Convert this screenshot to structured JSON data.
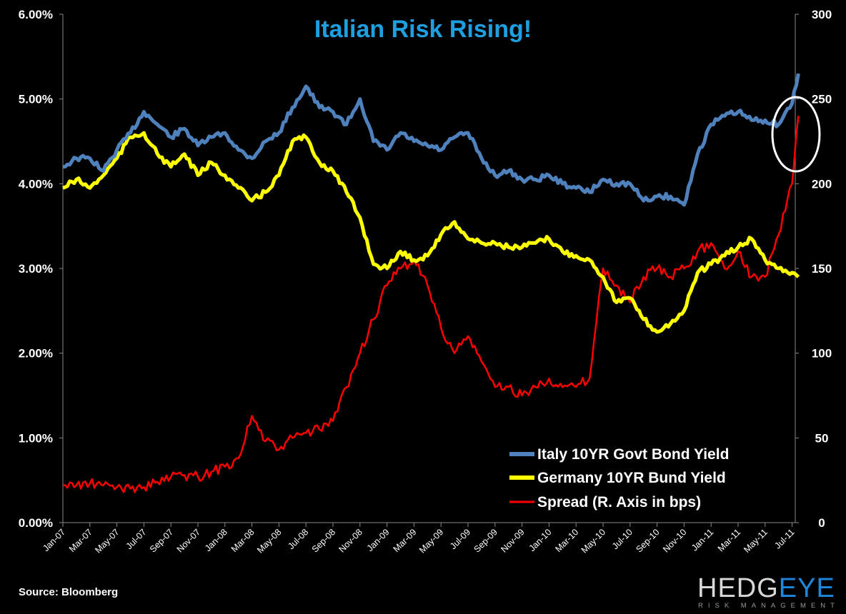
{
  "chart_data": {
    "type": "line",
    "title": "Italian Risk Rising!",
    "title_color": "#1ea0e0",
    "source": "Source: Bloomberg",
    "logo": {
      "main_a": "HEDG",
      "main_b": "EYE",
      "sub": "RISK MANAGEMENT"
    },
    "x_tick_labels": [
      "Jan-07",
      "Mar-07",
      "May-07",
      "Jul-07",
      "Sep-07",
      "Nov-07",
      "Jan-08",
      "Mar-08",
      "May-08",
      "Jul-08",
      "Sep-08",
      "Nov-08",
      "Jan-09",
      "Mar-09",
      "May-09",
      "Jul-09",
      "Sep-09",
      "Nov-09",
      "Jan-10",
      "Mar-10",
      "May-10",
      "Jul-10",
      "Sep-10",
      "Nov-10",
      "Jan-11",
      "Mar-11",
      "May-11",
      "Jul-11"
    ],
    "y_left": {
      "ticks": [
        "0.00%",
        "1.00%",
        "2.00%",
        "3.00%",
        "4.00%",
        "5.00%",
        "6.00%"
      ],
      "range": [
        0,
        6
      ],
      "unit": "%"
    },
    "y_right": {
      "ticks": [
        "0",
        "50",
        "100",
        "150",
        "200",
        "250",
        "300"
      ],
      "range": [
        0,
        300
      ],
      "unit": "bps"
    },
    "grid": false,
    "legend_position": "bottom-right",
    "annotation": "white ellipse around Jul-11 spike",
    "x": [
      "2007-01-01",
      "2007-02-01",
      "2007-03-01",
      "2007-04-01",
      "2007-05-01",
      "2007-06-01",
      "2007-07-01",
      "2007-08-01",
      "2007-09-01",
      "2007-10-01",
      "2007-11-01",
      "2007-12-01",
      "2008-01-01",
      "2008-02-01",
      "2008-03-01",
      "2008-04-01",
      "2008-05-01",
      "2008-06-01",
      "2008-07-01",
      "2008-08-01",
      "2008-09-01",
      "2008-10-01",
      "2008-11-01",
      "2008-12-01",
      "2009-01-01",
      "2009-02-01",
      "2009-03-01",
      "2009-04-01",
      "2009-05-01",
      "2009-06-01",
      "2009-07-01",
      "2009-08-01",
      "2009-09-01",
      "2009-10-01",
      "2009-11-01",
      "2009-12-01",
      "2010-01-01",
      "2010-02-01",
      "2010-03-01",
      "2010-04-01",
      "2010-05-01",
      "2010-06-01",
      "2010-07-01",
      "2010-08-01",
      "2010-09-01",
      "2010-10-01",
      "2010-11-01",
      "2010-12-01",
      "2011-01-01",
      "2011-02-01",
      "2011-03-01",
      "2011-04-01",
      "2011-05-01",
      "2011-06-01",
      "2011-07-01",
      "2011-07-15"
    ],
    "series": [
      {
        "name": "Italy 10YR Govt Bond Yield",
        "axis": "left",
        "color": "#4f81bd",
        "values": [
          4.2,
          4.3,
          4.3,
          4.15,
          4.4,
          4.6,
          4.85,
          4.7,
          4.55,
          4.65,
          4.45,
          4.55,
          4.6,
          4.4,
          4.3,
          4.5,
          4.6,
          4.9,
          5.15,
          4.9,
          4.85,
          4.7,
          5.0,
          4.5,
          4.4,
          4.6,
          4.5,
          4.45,
          4.4,
          4.55,
          4.6,
          4.3,
          4.1,
          4.15,
          4.05,
          4.05,
          4.1,
          4.0,
          3.95,
          3.9,
          4.05,
          4.0,
          4.0,
          3.8,
          3.85,
          3.85,
          3.75,
          4.35,
          4.7,
          4.8,
          4.85,
          4.75,
          4.75,
          4.7,
          4.95,
          5.3
        ]
      },
      {
        "name": "Germany 10YR Bund Yield",
        "axis": "left",
        "color": "#ffff00",
        "values": [
          3.95,
          4.05,
          3.95,
          4.1,
          4.3,
          4.55,
          4.6,
          4.35,
          4.2,
          4.35,
          4.1,
          4.25,
          4.1,
          3.95,
          3.8,
          3.9,
          4.1,
          4.5,
          4.55,
          4.25,
          4.15,
          3.9,
          3.6,
          3.05,
          3.0,
          3.2,
          3.1,
          3.15,
          3.4,
          3.55,
          3.35,
          3.3,
          3.3,
          3.25,
          3.25,
          3.3,
          3.35,
          3.2,
          3.15,
          3.1,
          2.9,
          2.6,
          2.65,
          2.4,
          2.25,
          2.35,
          2.5,
          2.95,
          3.05,
          3.15,
          3.25,
          3.35,
          3.1,
          3.0,
          2.95,
          2.9
        ]
      },
      {
        "name": "Spread (R. Axis in bps)",
        "axis": "right",
        "color": "#ff0000",
        "values": [
          22,
          22,
          23,
          22,
          21,
          20,
          21,
          24,
          27,
          28,
          27,
          30,
          33,
          38,
          63,
          48,
          43,
          50,
          53,
          55,
          60,
          80,
          100,
          120,
          140,
          150,
          155,
          140,
          115,
          100,
          110,
          95,
          80,
          80,
          75,
          80,
          85,
          80,
          80,
          85,
          150,
          140,
          130,
          145,
          150,
          145,
          150,
          160,
          165,
          150,
          160,
          145,
          145,
          170,
          200,
          240
        ]
      }
    ]
  }
}
